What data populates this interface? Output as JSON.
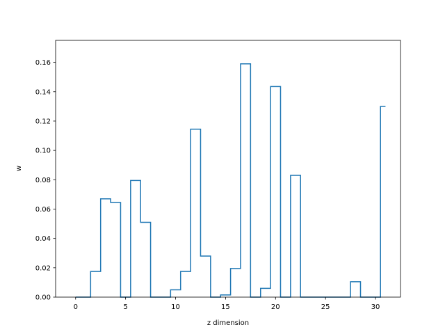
{
  "chart_data": {
    "type": "line",
    "style": "steps-mid",
    "title": "",
    "xlabel": "z dimension",
    "ylabel": "w",
    "xlim": [
      -2.0,
      32.5
    ],
    "ylim": [
      0.0,
      0.175
    ],
    "xticks": [
      0,
      5,
      10,
      15,
      20,
      25,
      30
    ],
    "yticks": [
      0.0,
      0.02,
      0.04,
      0.06,
      0.08,
      0.1,
      0.12,
      0.14,
      0.16
    ],
    "ytick_labels": [
      "0.00",
      "0.02",
      "0.04",
      "0.06",
      "0.08",
      "0.10",
      "0.12",
      "0.14",
      "0.16"
    ],
    "grid": false,
    "legend": "none",
    "color": "#1f77b4",
    "x": [
      0,
      1,
      2,
      3,
      4,
      5,
      6,
      7,
      8,
      9,
      10,
      11,
      12,
      13,
      14,
      15,
      16,
      17,
      18,
      19,
      20,
      21,
      22,
      23,
      24,
      25,
      26,
      27,
      28,
      29,
      30,
      31
    ],
    "series": [
      {
        "values": [
          0.0,
          0.0,
          0.0175,
          0.067,
          0.0645,
          0.0,
          0.0795,
          0.051,
          0.0,
          0.0,
          0.005,
          0.0175,
          0.1145,
          0.028,
          0.0,
          0.0015,
          0.0195,
          0.159,
          0.0,
          0.006,
          0.1435,
          0.0,
          0.083,
          0.0,
          0.0,
          0.0,
          0.0,
          0.0,
          0.0105,
          0.0,
          0.0,
          0.13
        ]
      }
    ]
  }
}
